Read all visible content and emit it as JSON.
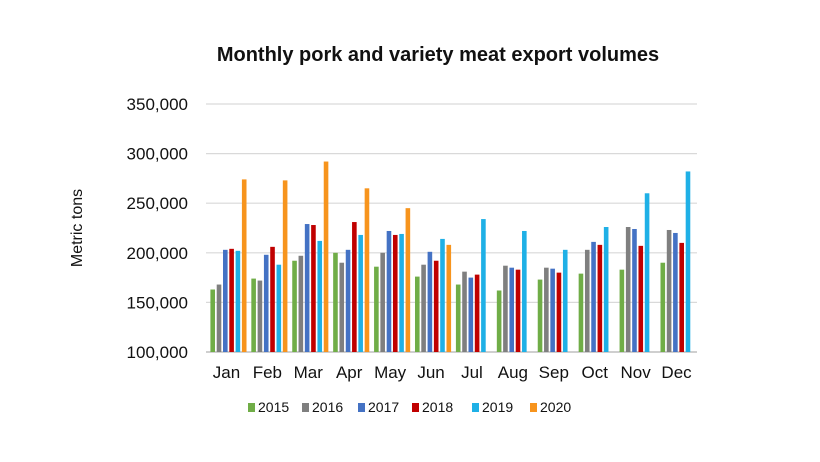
{
  "chart_data": {
    "type": "bar",
    "title": "Monthly pork and variety meat export volumes",
    "ylabel": "Metric tons",
    "xlabel": "",
    "ylim": [
      100000,
      350000
    ],
    "yticks": [
      100000,
      150000,
      200000,
      250000,
      300000,
      350000
    ],
    "ytick_labels": [
      "100,000",
      "150,000",
      "200,000",
      "250,000",
      "300,000",
      "350,000"
    ],
    "grid": "horizontal",
    "legend_position": "bottom",
    "categories": [
      "Jan",
      "Feb",
      "Mar",
      "Apr",
      "May",
      "Jun",
      "Jul",
      "Aug",
      "Sep",
      "Oct",
      "Nov",
      "Dec"
    ],
    "series": [
      {
        "name": "2015",
        "color": "#70ad47",
        "values": [
          163000,
          174000,
          192000,
          200000,
          186000,
          176000,
          168000,
          162000,
          173000,
          179000,
          183000,
          190000
        ]
      },
      {
        "name": "2016",
        "color": "#7f7f7f",
        "values": [
          168000,
          172000,
          197000,
          190000,
          200000,
          188000,
          181000,
          187000,
          185000,
          203000,
          226000,
          223000
        ]
      },
      {
        "name": "2017",
        "color": "#4472c4",
        "values": [
          203000,
          198000,
          229000,
          203000,
          222000,
          201000,
          175000,
          185000,
          184000,
          211000,
          224000,
          220000
        ]
      },
      {
        "name": "2018",
        "color": "#c00000",
        "values": [
          204000,
          206000,
          228000,
          231000,
          218000,
          192000,
          178000,
          183000,
          180000,
          208000,
          207000,
          210000
        ]
      },
      {
        "name": "2019",
        "color": "#1fb0e6",
        "values": [
          202000,
          188000,
          212000,
          218000,
          219000,
          214000,
          234000,
          222000,
          203000,
          226000,
          260000,
          282000
        ]
      },
      {
        "name": "2020",
        "color": "#f7941d",
        "values": [
          274000,
          273000,
          292000,
          265000,
          245000,
          208000,
          null,
          null,
          null,
          null,
          null,
          null
        ]
      }
    ]
  }
}
